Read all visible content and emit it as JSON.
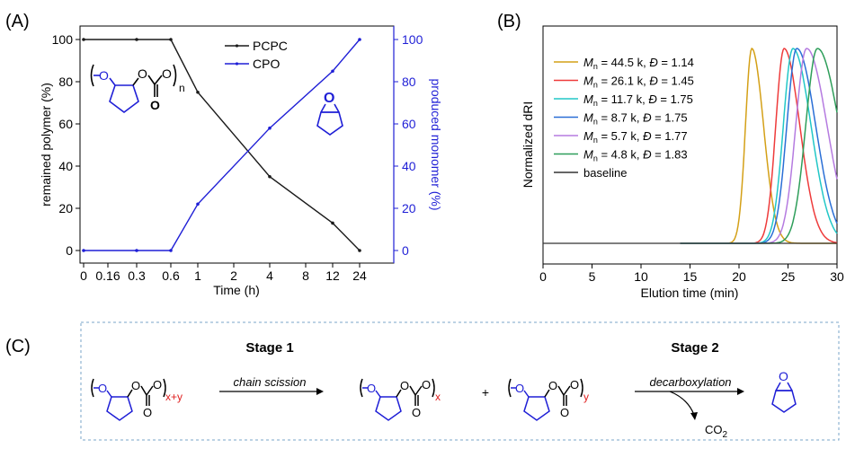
{
  "panels": {
    "a": "(A)",
    "b": "(B)",
    "c": "(C)"
  },
  "chart_data": [
    {
      "type": "line",
      "panel": "(A)",
      "xlabel": "Time (h)",
      "ylabel_left": "remained polymer (%)",
      "ylabel_right": "produced monomer (%)",
      "x_ticks": [
        "0",
        "0.16",
        "0.3",
        "0.6",
        "1",
        "2",
        "4",
        "8",
        "12",
        "24"
      ],
      "y_ticks": [
        "0",
        "20",
        "40",
        "60",
        "80",
        "100"
      ],
      "ylim": [
        0,
        100
      ],
      "x_scale": "categorical-nonlinear",
      "legend_position": "top-right",
      "colors": {
        "PCPC": "#1a1a1a",
        "CPO": "#1f1fd6",
        "right_axis": "#1f1fd6"
      },
      "series": [
        {
          "name": "PCPC",
          "x": [
            "0",
            "0.3",
            "0.6",
            "1",
            "4",
            "12",
            "24"
          ],
          "values": [
            100,
            100,
            100,
            75,
            35,
            13,
            0
          ]
        },
        {
          "name": "CPO",
          "x": [
            "0",
            "0.3",
            "0.6",
            "1",
            "4",
            "12",
            "24"
          ],
          "values": [
            0,
            0,
            0,
            22,
            58,
            85,
            100
          ]
        }
      ],
      "structure_labels": {
        "repeat": "n"
      }
    },
    {
      "type": "line",
      "panel": "(B)",
      "xlabel": "Elution time (min)",
      "ylabel": "Normalized dRI",
      "x_ticks": [
        "0",
        "5",
        "10",
        "15",
        "20",
        "25",
        "30"
      ],
      "xlim": [
        0,
        30
      ],
      "legend_position": "top-left",
      "series": [
        {
          "name": "= 44.5 k, ",
          "mn_symbol": "M",
          "mn_sub": "n",
          "d_symbol": "Đ",
          "d_value": " = 1.14",
          "color": "#d4a017",
          "peak": 21.3,
          "width": 0.75
        },
        {
          "name": "= 26.1 k, ",
          "mn_symbol": "M",
          "mn_sub": "n",
          "d_symbol": "Đ",
          "d_value": " = 1.45",
          "color": "#ee3b3b",
          "peak": 24.6,
          "width": 1.0
        },
        {
          "name": "= 11.7 k, ",
          "mn_symbol": "M",
          "mn_sub": "n",
          "d_symbol": "Đ",
          "d_value": " = 1.75",
          "color": "#22c7c7",
          "peak": 25.5,
          "width": 1.15
        },
        {
          "name": "= 8.7 k, ",
          "mn_symbol": "M",
          "mn_sub": "n",
          "d_symbol": "Đ",
          "d_value": " = 1.75",
          "color": "#2a6fd6",
          "peak": 25.9,
          "width": 1.2
        },
        {
          "name": "= 5.7 k, ",
          "mn_symbol": "M",
          "mn_sub": "n",
          "d_symbol": "Đ",
          "d_value": " = 1.77",
          "color": "#b57be0",
          "peak": 26.9,
          "width": 1.3
        },
        {
          "name": "= 4.8 k, ",
          "mn_symbol": "M",
          "mn_sub": "n",
          "d_symbol": "Đ",
          "d_value": " = 1.83",
          "color": "#2e9e5a",
          "peak": 28.0,
          "width": 1.4
        },
        {
          "name": "baseline",
          "color": "#333333"
        }
      ]
    }
  ],
  "scheme": {
    "stage1": "Stage 1",
    "stage2": "Stage 2",
    "arrow1": "chain scission",
    "arrow2": "decarboxylation",
    "byproduct": "CO",
    "byproduct_sub": "2",
    "plus": "+",
    "sub_xy": "x+y",
    "sub_x": "x",
    "sub_y": "y",
    "colors": {
      "ring": "#1f1fd6",
      "subscript": "#e02020",
      "frame": "#7aa6c8"
    }
  }
}
